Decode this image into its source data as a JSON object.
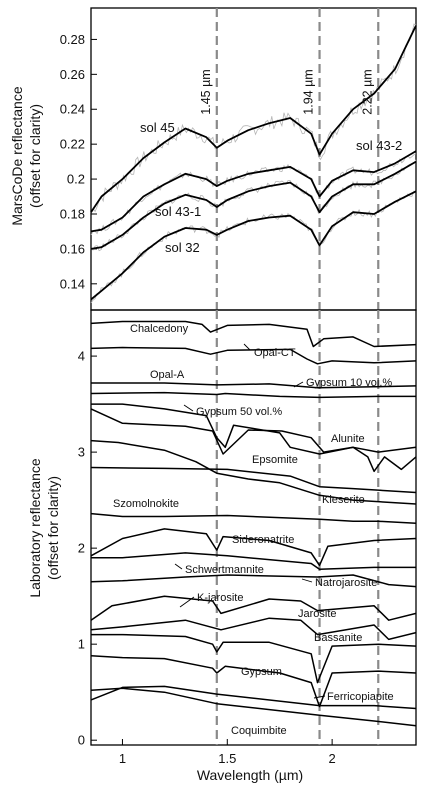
{
  "chart_data": [
    {
      "type": "line",
      "ylabel_line1": "MarsCoDe reflectance",
      "ylabel_line2": "(offset for clarity)",
      "xlim": [
        0.85,
        2.4
      ],
      "ylim": [
        0.125,
        0.298
      ],
      "y_ticks": [
        0.14,
        0.16,
        0.18,
        0.2,
        0.22,
        0.24,
        0.26,
        0.28
      ],
      "y_tick_labels": [
        "0.14",
        "0.16",
        "0.18",
        "0.2",
        "0.22",
        "0.24",
        "0.26",
        "0.28"
      ],
      "reference_lines": [
        {
          "x": 1.45,
          "label": "1.45 µm"
        },
        {
          "x": 1.94,
          "label": "1.94 µm"
        },
        {
          "x": 2.22,
          "label": "2.22 µm"
        }
      ],
      "series": [
        {
          "name": "sol 45",
          "x": [
            0.85,
            0.9,
            1.0,
            1.1,
            1.2,
            1.3,
            1.4,
            1.45,
            1.5,
            1.6,
            1.7,
            1.8,
            1.9,
            1.94,
            2.0,
            2.1,
            2.2,
            2.3,
            2.4
          ],
          "values": [
            0.181,
            0.19,
            0.2,
            0.212,
            0.221,
            0.229,
            0.224,
            0.218,
            0.222,
            0.228,
            0.232,
            0.235,
            0.226,
            0.214,
            0.226,
            0.24,
            0.249,
            0.263,
            0.288
          ]
        },
        {
          "name": "sol 43-2",
          "x": [
            0.85,
            0.9,
            1.0,
            1.1,
            1.2,
            1.3,
            1.4,
            1.45,
            1.5,
            1.6,
            1.7,
            1.8,
            1.9,
            1.94,
            2.0,
            2.1,
            2.2,
            2.3,
            2.4
          ],
          "values": [
            0.17,
            0.171,
            0.178,
            0.19,
            0.197,
            0.203,
            0.2,
            0.196,
            0.199,
            0.203,
            0.205,
            0.207,
            0.2,
            0.19,
            0.199,
            0.205,
            0.204,
            0.209,
            0.216
          ]
        },
        {
          "name": "sol 43-1",
          "x": [
            0.85,
            0.9,
            1.0,
            1.1,
            1.2,
            1.3,
            1.4,
            1.45,
            1.5,
            1.6,
            1.7,
            1.8,
            1.9,
            1.94,
            2.0,
            2.1,
            2.2,
            2.3,
            2.4
          ],
          "values": [
            0.16,
            0.161,
            0.168,
            0.178,
            0.186,
            0.191,
            0.188,
            0.184,
            0.188,
            0.193,
            0.196,
            0.198,
            0.19,
            0.181,
            0.19,
            0.197,
            0.197,
            0.203,
            0.21
          ]
        },
        {
          "name": "sol 32",
          "x": [
            0.85,
            0.9,
            1.0,
            1.1,
            1.2,
            1.3,
            1.4,
            1.45,
            1.5,
            1.6,
            1.7,
            1.8,
            1.9,
            1.94,
            2.0,
            2.1,
            2.2,
            2.3,
            2.4
          ],
          "values": [
            0.131,
            0.136,
            0.146,
            0.158,
            0.167,
            0.172,
            0.171,
            0.168,
            0.171,
            0.176,
            0.178,
            0.179,
            0.171,
            0.162,
            0.173,
            0.181,
            0.18,
            0.187,
            0.193
          ]
        }
      ]
    },
    {
      "type": "line",
      "ylabel_line1": "Laboratory reflectance",
      "ylabel_line2": "(offset for clarity)",
      "xlabel": "Wavelength (µm)",
      "xlim": [
        0.85,
        2.4
      ],
      "ylim": [
        -0.05,
        4.48
      ],
      "x_ticks": [
        1,
        1.5,
        2
      ],
      "x_tick_labels": [
        "1",
        "1.5",
        "2"
      ],
      "y_ticks": [
        0,
        1,
        2,
        3,
        4
      ],
      "y_tick_labels": [
        "0",
        "1",
        "2",
        "3",
        "4"
      ],
      "reference_lines": [
        {
          "x": 1.45
        },
        {
          "x": 1.94
        },
        {
          "x": 2.22
        }
      ],
      "series": [
        {
          "name": "Chalcedony",
          "x": [
            0.85,
            1.0,
            1.3,
            1.38,
            1.42,
            1.5,
            1.7,
            1.88,
            1.91,
            1.96,
            2.1,
            2.2,
            2.4
          ],
          "values": [
            4.34,
            4.36,
            4.36,
            4.33,
            4.25,
            4.32,
            4.33,
            4.28,
            4.1,
            4.18,
            4.2,
            4.1,
            4.12
          ]
        },
        {
          "name": "Opal-CT",
          "x": [
            0.85,
            1.0,
            1.3,
            1.42,
            1.5,
            1.8,
            1.88,
            1.93,
            2.0,
            2.2,
            2.4
          ],
          "values": [
            4.08,
            4.09,
            4.08,
            4.02,
            4.06,
            4.07,
            3.97,
            3.92,
            3.95,
            3.93,
            3.95
          ]
        },
        {
          "name": "Opal-A",
          "x": [
            0.85,
            1.2,
            1.45,
            1.7,
            1.93,
            2.2,
            2.4
          ],
          "values": [
            3.72,
            3.72,
            3.7,
            3.71,
            3.67,
            3.68,
            3.69
          ]
        },
        {
          "name": "Gypsum 10 vol.%",
          "x": [
            0.85,
            1.2,
            1.45,
            1.49,
            1.75,
            1.94,
            2.22,
            2.4
          ],
          "values": [
            3.61,
            3.62,
            3.6,
            3.61,
            3.58,
            3.57,
            3.58,
            3.58
          ]
        },
        {
          "name": "Gypsum 50 vol.%",
          "x": [
            0.85,
            1.0,
            1.2,
            1.4,
            1.45,
            1.49,
            1.53,
            1.75,
            1.8,
            1.94,
            2.1,
            2.22,
            2.4
          ],
          "values": [
            3.5,
            3.5,
            3.45,
            3.38,
            3.15,
            3.05,
            3.28,
            3.2,
            3.05,
            2.98,
            3.05,
            3.0,
            3.05
          ]
        },
        {
          "name": "Alunite",
          "x": [
            0.85,
            1.0,
            1.3,
            1.43,
            1.48,
            1.6,
            1.76,
            1.9,
            1.96,
            2.1,
            2.17,
            2.2,
            2.25,
            2.33,
            2.4
          ],
          "values": [
            3.45,
            3.3,
            3.27,
            3.22,
            2.98,
            3.23,
            3.22,
            3.15,
            3.0,
            3.05,
            2.95,
            2.8,
            2.95,
            2.82,
            2.95
          ]
        },
        {
          "name": "Epsomite",
          "x": [
            0.85,
            0.98,
            1.2,
            1.35,
            1.45,
            1.6,
            1.75,
            1.94,
            2.1,
            2.4
          ],
          "values": [
            3.12,
            3.1,
            3.02,
            2.9,
            2.78,
            2.72,
            2.68,
            2.55,
            2.5,
            2.46
          ]
        },
        {
          "name": "Kieserite",
          "x": [
            0.85,
            1.2,
            1.5,
            1.8,
            1.94,
            2.1,
            2.4
          ],
          "values": [
            2.84,
            2.83,
            2.82,
            2.75,
            2.64,
            2.62,
            2.58
          ]
        },
        {
          "name": "Szomolnokite",
          "x": [
            0.85,
            1.0,
            1.2,
            1.5,
            1.94,
            2.1,
            2.22,
            2.4
          ],
          "values": [
            2.36,
            2.33,
            2.33,
            2.34,
            2.3,
            2.28,
            2.28,
            2.26
          ]
        },
        {
          "name": "Sideronatrite",
          "x": [
            0.85,
            1.0,
            1.2,
            1.4,
            1.45,
            1.48,
            1.7,
            1.9,
            1.94,
            1.98,
            2.2,
            2.4
          ],
          "values": [
            1.92,
            2.1,
            2.2,
            2.15,
            1.98,
            2.12,
            2.08,
            1.95,
            1.82,
            2.02,
            2.08,
            2.1
          ]
        },
        {
          "name": "Schwertmannite",
          "x": [
            0.85,
            1.0,
            1.3,
            1.5,
            1.9,
            1.94,
            2.2,
            2.4
          ],
          "values": [
            1.9,
            1.9,
            1.95,
            1.92,
            1.84,
            1.78,
            1.8,
            1.8
          ]
        },
        {
          "name": "Natrojarosite",
          "x": [
            0.85,
            1.0,
            1.3,
            1.5,
            1.93,
            2.1,
            2.27,
            2.4
          ],
          "values": [
            1.65,
            1.66,
            1.7,
            1.72,
            1.7,
            1.72,
            1.62,
            1.6
          ]
        },
        {
          "name": "K-jarosite",
          "x": [
            0.85,
            0.95,
            1.2,
            1.43,
            1.47,
            1.7,
            1.85,
            1.93,
            2.2,
            2.27,
            2.4
          ],
          "values": [
            1.25,
            1.4,
            1.5,
            1.45,
            1.32,
            1.47,
            1.45,
            1.35,
            1.4,
            1.25,
            1.32
          ]
        },
        {
          "name": "Jarosite",
          "x": [
            0.85,
            1.0,
            1.3,
            1.47,
            1.7,
            1.85,
            1.93,
            2.2,
            2.27,
            2.4
          ],
          "values": [
            1.15,
            1.18,
            1.25,
            1.15,
            1.27,
            1.25,
            1.1,
            1.2,
            1.05,
            1.12
          ]
        },
        {
          "name": "Bassanite",
          "x": [
            0.85,
            1.0,
            1.3,
            1.43,
            1.45,
            1.48,
            1.7,
            1.9,
            1.93,
            2.0,
            2.22,
            2.4
          ],
          "values": [
            1.1,
            1.1,
            1.08,
            1.0,
            0.92,
            1.02,
            1.02,
            0.9,
            0.6,
            0.98,
            1.0,
            0.98
          ]
        },
        {
          "name": "Gypsum",
          "x": [
            0.85,
            1.0,
            1.2,
            1.43,
            1.45,
            1.49,
            1.75,
            1.9,
            1.94,
            2.0,
            2.22,
            2.4
          ],
          "values": [
            0.88,
            0.86,
            0.85,
            0.75,
            0.7,
            0.77,
            0.7,
            0.6,
            0.35,
            0.7,
            0.72,
            0.7
          ]
        },
        {
          "name": "Ferricopiapite",
          "x": [
            0.85,
            1.0,
            1.2,
            1.45,
            1.94,
            2.2,
            2.4
          ],
          "values": [
            0.42,
            0.55,
            0.56,
            0.48,
            0.36,
            0.36,
            0.33
          ]
        },
        {
          "name": "Coquimbite",
          "x": [
            0.85,
            1.0,
            1.2,
            1.45,
            1.94,
            2.2,
            2.4
          ],
          "values": [
            0.52,
            0.54,
            0.5,
            0.38,
            0.26,
            0.2,
            0.15
          ]
        }
      ]
    }
  ]
}
